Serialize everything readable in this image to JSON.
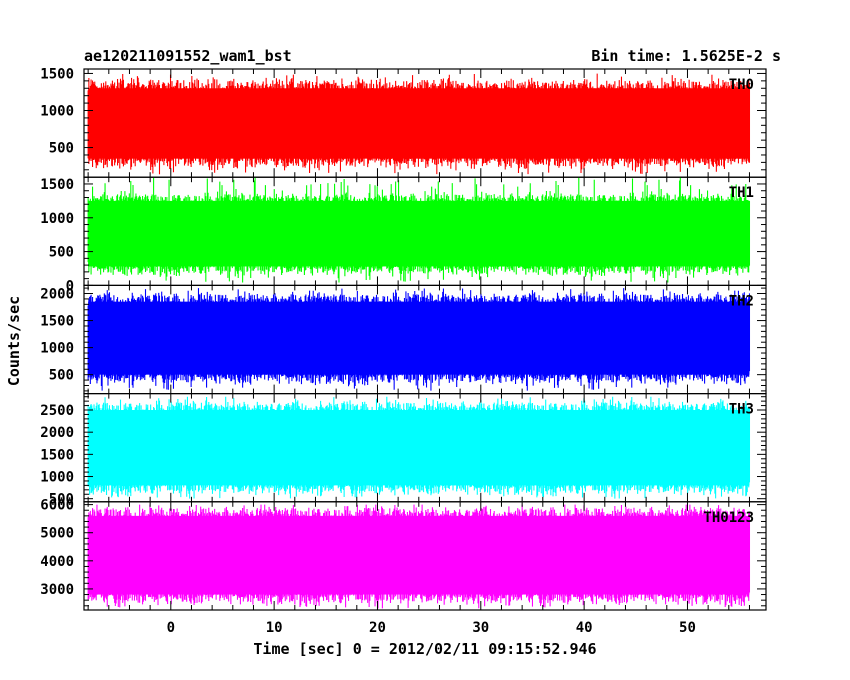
{
  "chart_data": {
    "type": "line",
    "title": "ae120211091552_wam1_bst",
    "subtitle": "Bin time: 1.5625E-2 s",
    "xlabel": "Time [sec] 0 = 2012/02/11 09:15:52.946",
    "ylabel": "Counts/sec",
    "xlim": [
      -8.4,
      57.6
    ],
    "data_xrange": [
      -8.0,
      56.0
    ],
    "bin_time": 0.015625,
    "x_ticks": [
      0,
      10,
      20,
      30,
      40,
      50
    ],
    "grid": false,
    "panels": [
      {
        "name": "TH0",
        "color": "#ff0000",
        "ylim": [
          100,
          1560
        ],
        "y_ticks": [
          500,
          1000,
          1500
        ],
        "baseline": 850,
        "min_value": 130,
        "max_value": 1500,
        "typical_range": [
          350,
          1300
        ]
      },
      {
        "name": "TH1",
        "color": "#00ff00",
        "ylim": [
          0,
          1600
        ],
        "y_ticks": [
          0,
          500,
          1000,
          1500
        ],
        "baseline": 770,
        "min_value": 40,
        "max_value": 1600,
        "typical_range": [
          280,
          1250
        ]
      },
      {
        "name": "TH2",
        "color": "#0000ff",
        "ylim": [
          150,
          2150
        ],
        "y_ticks": [
          500,
          1000,
          1500,
          2000
        ],
        "baseline": 1170,
        "min_value": 200,
        "max_value": 2100,
        "typical_range": [
          500,
          1850
        ]
      },
      {
        "name": "TH3",
        "color": "#00ffff",
        "ylim": [
          430,
          2870
        ],
        "y_ticks": [
          500,
          1000,
          1500,
          2000,
          2500
        ],
        "baseline": 1650,
        "min_value": 500,
        "max_value": 2800,
        "typical_range": [
          800,
          2500
        ]
      },
      {
        "name": "TH0123",
        "color": "#ff00ff",
        "ylim": [
          2250,
          6100
        ],
        "y_ticks": [
          3000,
          4000,
          5000,
          6000
        ],
        "baseline": 4200,
        "min_value": 2300,
        "max_value": 6000,
        "typical_range": [
          2800,
          5600
        ]
      }
    ]
  }
}
